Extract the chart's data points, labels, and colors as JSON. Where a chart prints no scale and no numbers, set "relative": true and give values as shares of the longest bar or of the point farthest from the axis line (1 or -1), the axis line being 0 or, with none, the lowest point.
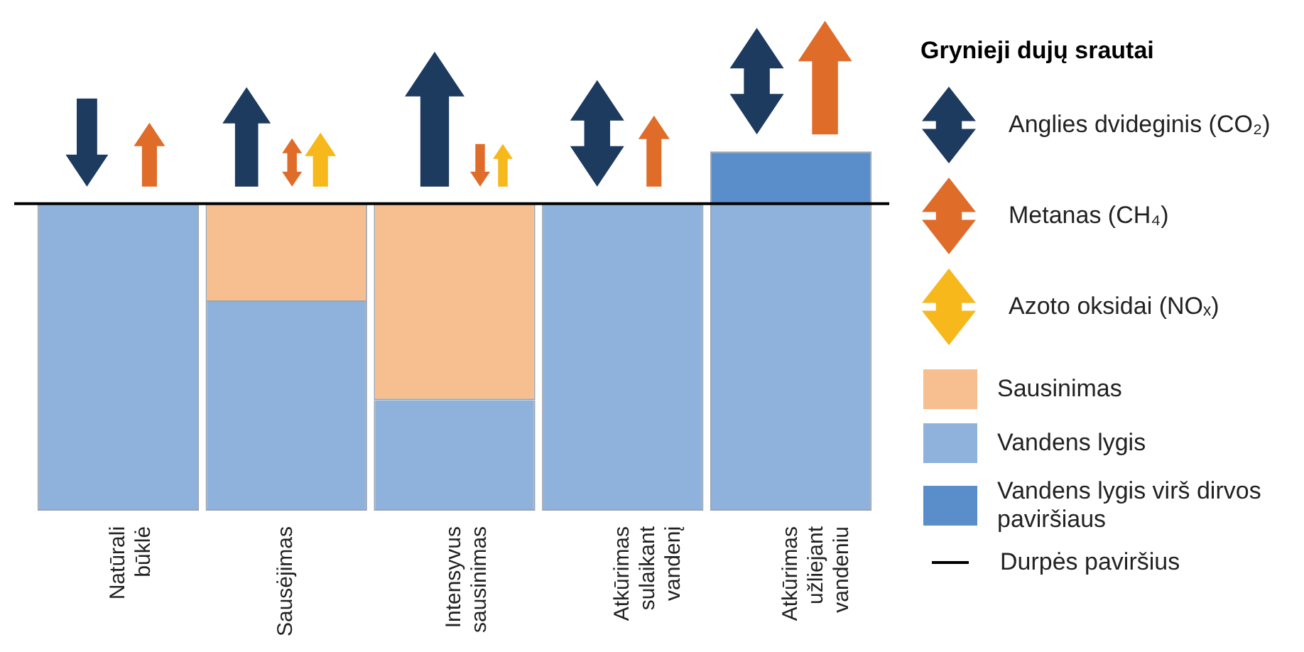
{
  "chart_data": {
    "type": "bar",
    "relative": true,
    "stacked": true,
    "legend": "right",
    "legend_title": "Grynieji dujų srautai",
    "categories": [
      "Natūrali būklė",
      "Sausėjimas",
      "Intensyvus sausinimas",
      "Atkūrimas sulaikant vandenį",
      "Atkūrimas užliejant vandeniu"
    ],
    "series": [
      {
        "name": "Sausinimas",
        "color": "#f7be8f",
        "values": [
          null,
          -0.32,
          -0.64,
          null,
          null
        ]
      },
      {
        "name": "Vandens lygis",
        "color": "#8fb2dc",
        "values": [
          -1,
          -0.68,
          -0.36,
          -1,
          -1
        ]
      },
      {
        "name": "Vandens lygis virš dirvos paviršiaus",
        "color": "#5a8ecb",
        "values": [
          null,
          null,
          null,
          null,
          0.17
        ]
      }
    ],
    "ref_lines": [
      {
        "axis": "y",
        "value": 0,
        "label": "Durpės paviršius",
        "color": "#000000"
      }
    ],
    "annotations": [
      "Anglies dvideginis (CO₂)",
      "Metanas (CH₄)",
      "Azoto oksidai (NOₓ)"
    ]
  }
}
